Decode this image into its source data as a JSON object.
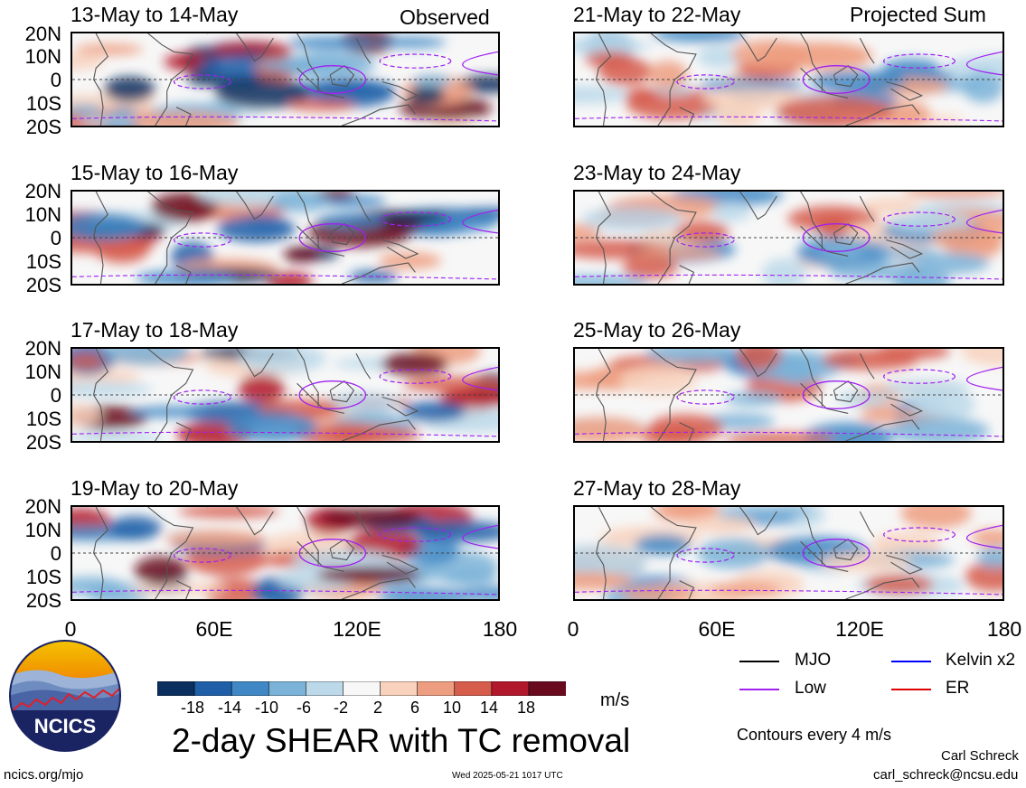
{
  "panels_left": [
    {
      "title": "13-May to 14-May"
    },
    {
      "title": "15-May to 16-May"
    },
    {
      "title": "17-May to 18-May"
    },
    {
      "title": "19-May to 20-May"
    }
  ],
  "panels_right": [
    {
      "title": "21-May to 22-May"
    },
    {
      "title": "23-May to 24-May"
    },
    {
      "title": "25-May to 26-May"
    },
    {
      "title": "27-May to 28-May"
    }
  ],
  "observed_label": "Observed",
  "projected_label": "Projected Sum",
  "lat_labels": [
    "20N",
    "10N",
    "0",
    "10S",
    "20S"
  ],
  "lon_labels": [
    "0",
    "60E",
    "120E",
    "180"
  ],
  "colorbar": {
    "labels": [
      "-18",
      "-14",
      "-10",
      "-6",
      "-2",
      "2",
      "6",
      "10",
      "14",
      "18"
    ],
    "colors": [
      "#0b2f5e",
      "#1f5fa8",
      "#3f88c5",
      "#7bb3d8",
      "#bcd9ea",
      "#f7f7f7",
      "#f8d2bd",
      "#ee9e80",
      "#d65c4c",
      "#b2182b",
      "#6a0a1f"
    ],
    "unit": "m/s"
  },
  "legend": {
    "mjo": "MJO",
    "kelvin": "Kelvin x2",
    "low": "Low",
    "er": "ER",
    "mjo_color": "#000000",
    "kelvin_color": "#0000ff",
    "low_color": "#a020f0",
    "er_color": "#e00000"
  },
  "contour_note": "Contours every 4 m/s",
  "main_title": "2-day SHEAR with TC removal",
  "logo_text": "NCICS",
  "footer": {
    "url": "ncics.org/mjo",
    "timestamp": "Wed 2025-05-21 1017 UTC",
    "author": "Carl Schreck",
    "email": "carl_schreck@ncsu.edu"
  }
}
